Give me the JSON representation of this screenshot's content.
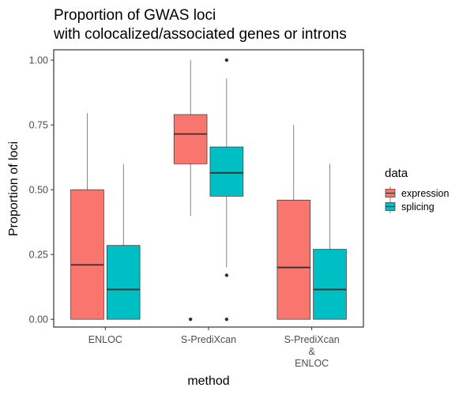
{
  "chart_data": {
    "type": "boxplot",
    "title_lines": [
      "Proportion of GWAS loci",
      "with colocalized/associated genes or introns"
    ],
    "xlabel": "method",
    "ylabel": "Proportion of loci",
    "ylim": [
      -0.03,
      1.04
    ],
    "yticks": [
      0.0,
      0.25,
      0.5,
      0.75,
      1.0
    ],
    "ytick_labels": [
      "0.00",
      "0.25",
      "0.50",
      "0.75",
      "1.00"
    ],
    "categories": [
      [
        "ENLOC"
      ],
      [
        "S-PrediXcan"
      ],
      [
        "S-PrediXcan",
        "&",
        "ENLOC"
      ]
    ],
    "grid": false,
    "legend": {
      "title": "data",
      "position": "right",
      "entries": [
        "expression",
        "splicing"
      ]
    },
    "series": [
      {
        "name": "expression",
        "color": "#F8766D",
        "boxes": [
          {
            "whisker_low": 0.0,
            "q1": 0.0,
            "median": 0.21,
            "q3": 0.5,
            "whisker_high": 0.795,
            "outliers": []
          },
          {
            "whisker_low": 0.4,
            "q1": 0.6,
            "median": 0.715,
            "q3": 0.79,
            "whisker_high": 1.0,
            "outliers": [
              0.0
            ]
          },
          {
            "whisker_low": 0.0,
            "q1": 0.0,
            "median": 0.2,
            "q3": 0.46,
            "whisker_high": 0.75,
            "outliers": []
          }
        ]
      },
      {
        "name": "splicing",
        "color": "#00BFC4",
        "boxes": [
          {
            "whisker_low": 0.0,
            "q1": 0.0,
            "median": 0.115,
            "q3": 0.285,
            "whisker_high": 0.6,
            "outliers": []
          },
          {
            "whisker_low": 0.2,
            "q1": 0.475,
            "median": 0.565,
            "q3": 0.665,
            "whisker_high": 0.93,
            "outliers": [
              1.0,
              0.17,
              0.0
            ]
          },
          {
            "whisker_low": 0.0,
            "q1": 0.0,
            "median": 0.115,
            "q3": 0.27,
            "whisker_high": 0.6,
            "outliers": []
          }
        ]
      }
    ]
  }
}
